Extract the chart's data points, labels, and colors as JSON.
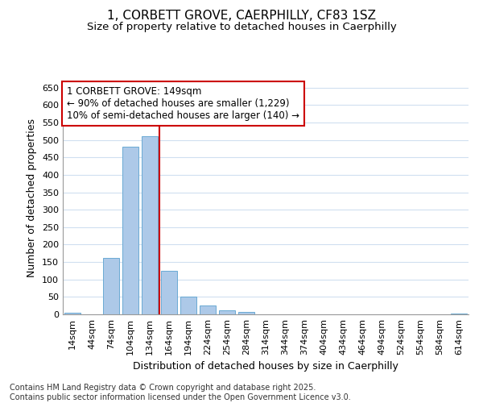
{
  "title_line1": "1, CORBETT GROVE, CAERPHILLY, CF83 1SZ",
  "title_line2": "Size of property relative to detached houses in Caerphilly",
  "xlabel": "Distribution of detached houses by size in Caerphilly",
  "ylabel": "Number of detached properties",
  "bar_labels": [
    "14sqm",
    "44sqm",
    "74sqm",
    "104sqm",
    "134sqm",
    "164sqm",
    "194sqm",
    "224sqm",
    "254sqm",
    "284sqm",
    "314sqm",
    "344sqm",
    "374sqm",
    "404sqm",
    "434sqm",
    "464sqm",
    "494sqm",
    "524sqm",
    "554sqm",
    "584sqm",
    "614sqm"
  ],
  "bar_values": [
    4,
    0,
    161,
    481,
    510,
    124,
    51,
    25,
    12,
    8,
    0,
    0,
    0,
    0,
    0,
    0,
    0,
    0,
    0,
    0,
    2
  ],
  "bar_color": "#adc9e8",
  "bar_edge_color": "#6aaad4",
  "ylim": [
    0,
    670
  ],
  "yticks": [
    0,
    50,
    100,
    150,
    200,
    250,
    300,
    350,
    400,
    450,
    500,
    550,
    600,
    650
  ],
  "vline_x": 4.5,
  "vline_color": "#cc0000",
  "annotation_text": "1 CORBETT GROVE: 149sqm\n← 90% of detached houses are smaller (1,229)\n10% of semi-detached houses are larger (140) →",
  "annotation_box_color": "#ffffff",
  "annotation_box_edge": "#cc0000",
  "footnote": "Contains HM Land Registry data © Crown copyright and database right 2025.\nContains public sector information licensed under the Open Government Licence v3.0.",
  "background_color": "#ffffff",
  "grid_color": "#d0dff0",
  "title_fontsize": 11,
  "subtitle_fontsize": 9.5,
  "axis_label_fontsize": 9,
  "tick_fontsize": 8,
  "annotation_fontsize": 8.5,
  "footnote_fontsize": 7
}
